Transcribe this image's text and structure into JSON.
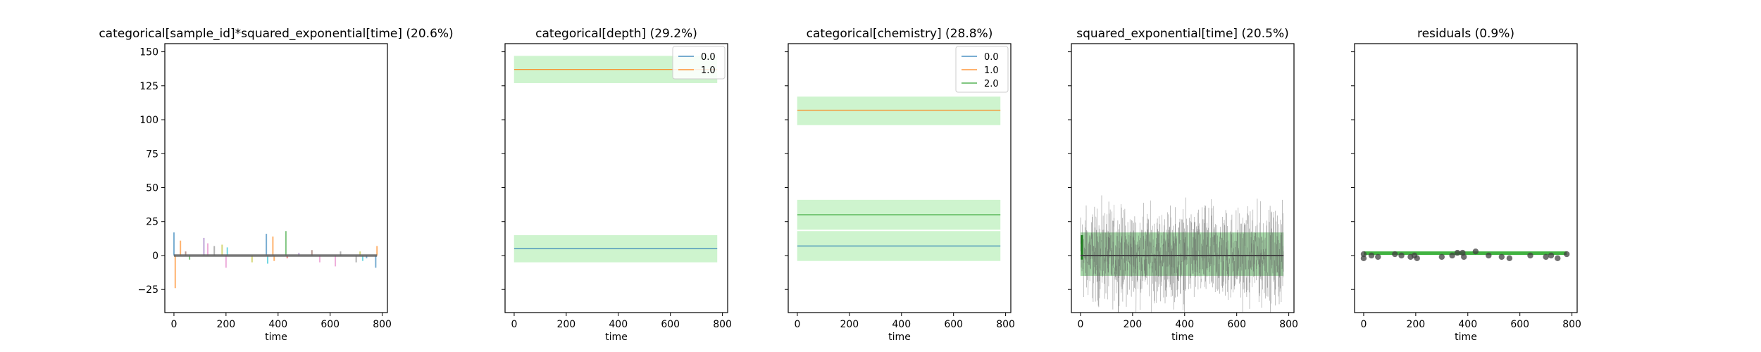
{
  "colors": {
    "band": "#c6f2c6",
    "band_dark": "#a9e6a9",
    "tab_blue": "#1f77b4",
    "tab_orange": "#ff7f0e",
    "tab_green": "#2ca02c",
    "trace_gray": "#606060",
    "resid_green": "#11a011"
  },
  "chart_data": [
    {
      "type": "line",
      "title": "categorical[sample_id]*squared_exponential[time] (20.6%)",
      "xlabel": "time",
      "ylabel": "",
      "xlim": [
        -35,
        820
      ],
      "ylim": [
        -42,
        156
      ],
      "xticks": [
        0,
        200,
        400,
        600,
        800
      ],
      "yticks": [
        -25,
        0,
        25,
        50,
        75,
        100,
        125,
        150
      ],
      "legend": null,
      "spikes": [
        {
          "x": 0,
          "y": 17,
          "color": "#1f77b4"
        },
        {
          "x": 5,
          "y": -24,
          "color": "#ff7f0e"
        },
        {
          "x": 25,
          "y": 11,
          "color": "#ff7f0e"
        },
        {
          "x": 45,
          "y": 3,
          "color": "#8c564b"
        },
        {
          "x": 60,
          "y": -3,
          "color": "#2ca02c"
        },
        {
          "x": 115,
          "y": 13,
          "color": "#9467bd"
        },
        {
          "x": 130,
          "y": 9,
          "color": "#e377c2"
        },
        {
          "x": 155,
          "y": 7,
          "color": "#7f7f7f"
        },
        {
          "x": 185,
          "y": 8,
          "color": "#bcbd22"
        },
        {
          "x": 200,
          "y": -9,
          "color": "#e377c2"
        },
        {
          "x": 205,
          "y": 6,
          "color": "#17becf"
        },
        {
          "x": 300,
          "y": -5,
          "color": "#bcbd22"
        },
        {
          "x": 355,
          "y": 16,
          "color": "#1f77b4"
        },
        {
          "x": 360,
          "y": -6,
          "color": "#17becf"
        },
        {
          "x": 380,
          "y": 14,
          "color": "#ff7f0e"
        },
        {
          "x": 385,
          "y": -4,
          "color": "#ff7f0e"
        },
        {
          "x": 430,
          "y": 18,
          "color": "#2ca02c"
        },
        {
          "x": 435,
          "y": -2,
          "color": "#d62728"
        },
        {
          "x": 480,
          "y": 2,
          "color": "#9467bd"
        },
        {
          "x": 530,
          "y": 4,
          "color": "#8c564b"
        },
        {
          "x": 560,
          "y": -5,
          "color": "#e377c2"
        },
        {
          "x": 620,
          "y": -8,
          "color": "#e377c2"
        },
        {
          "x": 640,
          "y": 3,
          "color": "#7f7f7f"
        },
        {
          "x": 700,
          "y": -5,
          "color": "#7f7f7f"
        },
        {
          "x": 715,
          "y": 3,
          "color": "#bcbd22"
        },
        {
          "x": 725,
          "y": -4,
          "color": "#17becf"
        },
        {
          "x": 740,
          "y": -2,
          "color": "#1f77b4"
        },
        {
          "x": 775,
          "y": -9,
          "color": "#1f77b4"
        },
        {
          "x": 780,
          "y": 7,
          "color": "#ff7f0e"
        }
      ],
      "baseline": {
        "y": 0,
        "color": "#606060"
      }
    },
    {
      "type": "line",
      "title": "categorical[depth] (29.2%)",
      "xlabel": "time",
      "ylabel": "",
      "xlim": [
        -35,
        820
      ],
      "ylim": [
        -42,
        156
      ],
      "xticks": [
        0,
        200,
        400,
        600,
        800
      ],
      "yticks": [
        -25,
        0,
        25,
        50,
        75,
        100,
        125,
        150
      ],
      "legend": "top-right",
      "series": [
        {
          "name": "0.0",
          "mean": 5,
          "lower": -5,
          "upper": 15,
          "color": "#1f77b4"
        },
        {
          "name": "1.0",
          "mean": 137,
          "lower": 127,
          "upper": 147,
          "color": "#ff7f0e"
        }
      ],
      "x": [
        0,
        780
      ]
    },
    {
      "type": "line",
      "title": "categorical[chemistry] (28.8%)",
      "xlabel": "time",
      "ylabel": "",
      "xlim": [
        -35,
        820
      ],
      "ylim": [
        -42,
        156
      ],
      "xticks": [
        0,
        200,
        400,
        600,
        800
      ],
      "yticks": [
        -25,
        0,
        25,
        50,
        75,
        100,
        125,
        150
      ],
      "legend": "top-right",
      "series": [
        {
          "name": "0.0",
          "mean": 7,
          "lower": -4,
          "upper": 18,
          "color": "#1f77b4"
        },
        {
          "name": "1.0",
          "mean": 107,
          "lower": 96,
          "upper": 117,
          "color": "#ff7f0e"
        },
        {
          "name": "2.0",
          "mean": 30,
          "lower": 19,
          "upper": 41,
          "color": "#2ca02c"
        }
      ],
      "x": [
        0,
        780
      ]
    },
    {
      "type": "line",
      "title": "squared_exponential[time] (20.5%)",
      "xlabel": "time",
      "ylabel": "",
      "xlim": [
        -35,
        820
      ],
      "ylim": [
        -42,
        156
      ],
      "xticks": [
        0,
        200,
        400,
        600,
        800
      ],
      "yticks": [
        -25,
        0,
        25,
        50,
        75,
        100,
        125,
        150
      ],
      "legend": null,
      "band": {
        "lower": -15,
        "upper": 17
      },
      "trace": {
        "mean": 0,
        "spread": 33,
        "x0": 0,
        "x1": 780
      }
    },
    {
      "type": "scatter",
      "title": "residuals (0.9%)",
      "xlabel": "time",
      "ylabel": "",
      "xlim": [
        -35,
        820
      ],
      "ylim": [
        -42,
        156
      ],
      "xticks": [
        0,
        200,
        400,
        600,
        800
      ],
      "yticks": [
        -25,
        0,
        25,
        50,
        75,
        100,
        125,
        150
      ],
      "legend": null,
      "band": {
        "lower": -2,
        "upper": 2
      },
      "points": [
        {
          "x": 0,
          "y": 1
        },
        {
          "x": 0,
          "y": -2
        },
        {
          "x": 30,
          "y": 0
        },
        {
          "x": 55,
          "y": -1
        },
        {
          "x": 120,
          "y": 1
        },
        {
          "x": 145,
          "y": 0
        },
        {
          "x": 180,
          "y": -1
        },
        {
          "x": 195,
          "y": 0
        },
        {
          "x": 205,
          "y": -2
        },
        {
          "x": 300,
          "y": -1
        },
        {
          "x": 340,
          "y": 0
        },
        {
          "x": 360,
          "y": 2
        },
        {
          "x": 380,
          "y": 2
        },
        {
          "x": 385,
          "y": -1
        },
        {
          "x": 430,
          "y": 3
        },
        {
          "x": 480,
          "y": 0
        },
        {
          "x": 530,
          "y": -1
        },
        {
          "x": 560,
          "y": -2
        },
        {
          "x": 640,
          "y": 0
        },
        {
          "x": 700,
          "y": -1
        },
        {
          "x": 720,
          "y": 0
        },
        {
          "x": 745,
          "y": -2
        },
        {
          "x": 780,
          "y": 1
        }
      ]
    }
  ]
}
